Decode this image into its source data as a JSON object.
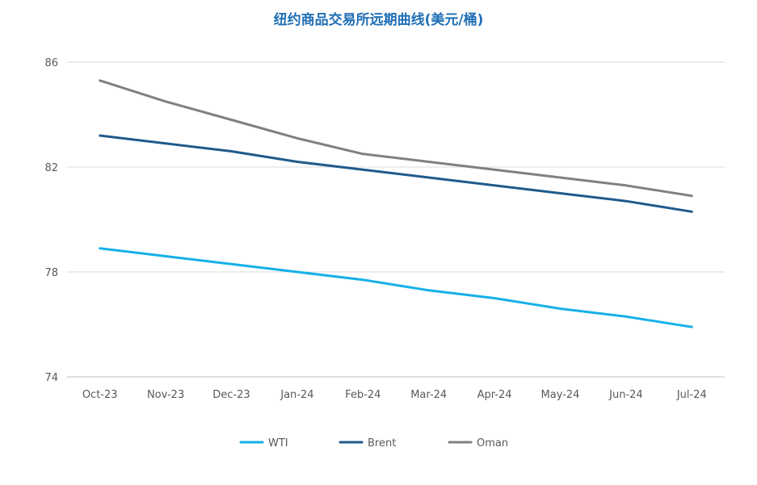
{
  "chart_data": {
    "type": "line",
    "title": "纽约商品交易所远期曲线(美元/桶)",
    "xlabel": "",
    "ylabel": "",
    "categories": [
      "Oct-23",
      "Nov-23",
      "Dec-23",
      "Jan-24",
      "Feb-24",
      "Mar-24",
      "Apr-24",
      "May-24",
      "Jun-24",
      "Jul-24"
    ],
    "ylim": [
      74,
      86
    ],
    "yticks": [
      "74",
      "78",
      "82",
      "86"
    ],
    "grid": true,
    "legend": "bottom",
    "series": [
      {
        "name": "WTI",
        "color": "#16b0e8",
        "values": [
          78.9,
          78.6,
          78.3,
          78.0,
          77.7,
          77.3,
          77.0,
          76.6,
          76.3,
          75.9
        ]
      },
      {
        "name": "Brent",
        "color": "#1f5a8c",
        "values": [
          83.2,
          82.9,
          82.6,
          82.2,
          81.9,
          81.6,
          81.3,
          81.0,
          80.7,
          80.3
        ]
      },
      {
        "name": "Oman",
        "color": "#808080",
        "values": [
          85.3,
          84.5,
          83.8,
          83.1,
          82.5,
          82.2,
          81.9,
          81.6,
          81.3,
          80.9
        ]
      }
    ]
  }
}
